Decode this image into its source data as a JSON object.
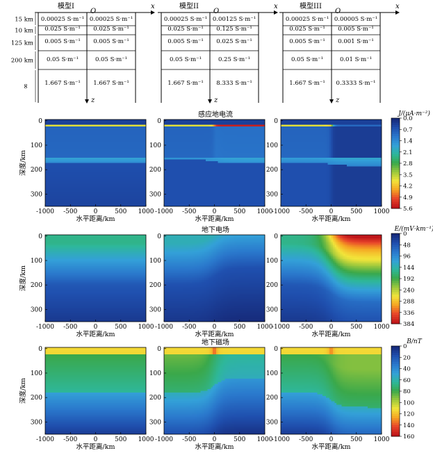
{
  "models": [
    {
      "title": "模型I",
      "cells": [
        [
          "0.00025 S·m⁻¹",
          "0.00025 S·m⁻¹"
        ],
        [
          "0.025 S·m⁻¹",
          "0.025 S·m⁻¹"
        ],
        [
          "0.005 S·m⁻¹",
          "0.005 S·m⁻¹"
        ],
        [
          "0.05 S·m⁻¹",
          "0.05 S·m⁻¹"
        ],
        [
          "1.667 S·m⁻¹",
          "1.667 S·m⁻¹"
        ]
      ]
    },
    {
      "title": "模型II",
      "cells": [
        [
          "0.00025 S·m⁻¹",
          "0.00125 S·m⁻¹"
        ],
        [
          "0.025 S·m⁻¹",
          "0.125 S·m⁻¹"
        ],
        [
          "0.005 S·m⁻¹",
          "0.025 S·m⁻¹"
        ],
        [
          "0.05 S·m⁻¹",
          "0.25 S·m⁻¹"
        ],
        [
          "1.667 S·m⁻¹",
          "8.333 S·m⁻¹"
        ]
      ]
    },
    {
      "title": "模型III",
      "cells": [
        [
          "0.00025 S·m⁻¹",
          "0.00005 S·m⁻¹"
        ],
        [
          "0.025 S·m⁻¹",
          "0.005 S·m⁻¹"
        ],
        [
          "0.005 S·m⁻¹",
          "0.001 S·m⁻¹"
        ],
        [
          "0.05 S·m⁻¹",
          "0.01 S·m⁻¹"
        ],
        [
          "1.667 S·m⁻¹",
          "0.3333 S·m⁻¹"
        ]
      ]
    }
  ],
  "layer_thickness": [
    "15 km",
    "10 km",
    "125 km",
    "200 km",
    "∞"
  ],
  "origin_label": "O",
  "x_axis_label": "x",
  "z_axis_label": "z",
  "rows": [
    {
      "title": "感应地电流",
      "cb_label": "J/(μA·m⁻²)",
      "cb_ticks": [
        "0.0",
        "0.7",
        "1.4",
        "2.1",
        "2.8",
        "3.5",
        "4.2",
        "4.9",
        "5.6"
      ],
      "scale": [
        0.32,
        0.4,
        0.4
      ]
    },
    {
      "title": "地下电场",
      "cb_label": "E/(mV·km⁻¹)",
      "cb_ticks": [
        "0",
        "48",
        "96",
        "144",
        "192",
        "240",
        "288",
        "336",
        "384"
      ],
      "scale": [
        0.5,
        0.32,
        0.85
      ]
    },
    {
      "title": "地下磁场",
      "cb_label": "B/nT",
      "cb_ticks": [
        "0",
        "20",
        "40",
        "60",
        "80",
        "100",
        "120",
        "140",
        "160"
      ],
      "scale": [
        0.75,
        0.55,
        0.6
      ]
    }
  ],
  "ylabel": "深度/km",
  "xlabel": "水平距离/km",
  "x_ticks": [
    "-1000",
    "-500",
    "0",
    "500",
    "1000"
  ],
  "y_ticks": [
    "0",
    "100",
    "200",
    "300"
  ],
  "chart_data": {
    "type": "heatmap",
    "xlim": [
      -1000,
      1000
    ],
    "ylim": [
      0,
      350
    ],
    "xlabel": "水平距离/km",
    "ylabel": "深度/km",
    "panels": [
      {
        "row": "感应地电流",
        "model": "模型I",
        "unit": "μA·m⁻²",
        "range": [
          0,
          5.6
        ]
      },
      {
        "row": "感应地电流",
        "model": "模型II",
        "unit": "μA·m⁻²",
        "range": [
          0,
          5.6
        ]
      },
      {
        "row": "感应地电流",
        "model": "模型III",
        "unit": "μA·m⁻²",
        "range": [
          0,
          5.6
        ]
      },
      {
        "row": "地下电场",
        "model": "模型I",
        "unit": "mV·km⁻¹",
        "range": [
          0,
          384
        ]
      },
      {
        "row": "地下电场",
        "model": "模型II",
        "unit": "mV·km⁻¹",
        "range": [
          0,
          384
        ]
      },
      {
        "row": "地下电场",
        "model": "模型III",
        "unit": "mV·km⁻¹",
        "range": [
          0,
          384
        ]
      },
      {
        "row": "地下磁场",
        "model": "模型I",
        "unit": "nT",
        "range": [
          0,
          160
        ]
      },
      {
        "row": "地下磁场",
        "model": "模型II",
        "unit": "nT",
        "range": [
          0,
          160
        ]
      },
      {
        "row": "地下磁场",
        "model": "模型III",
        "unit": "nT",
        "range": [
          0,
          160
        ]
      }
    ]
  },
  "colormap": [
    "#162a7a",
    "#1f4fae",
    "#2a78cc",
    "#33a0d8",
    "#2eb79a",
    "#3aa84a",
    "#9cc83c",
    "#f2e43a",
    "#f5a623",
    "#e8462a",
    "#c0161a"
  ]
}
